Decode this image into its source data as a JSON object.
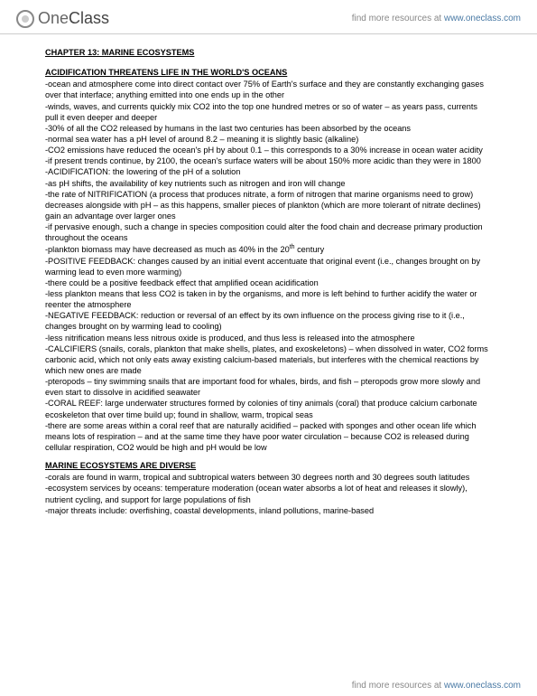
{
  "header": {
    "logo_one": "One",
    "logo_class": "Class",
    "tagline_prefix": "find more resources at ",
    "tagline_link": "www.oneclass.com"
  },
  "chapter_title": "CHAPTER 13: MARINE ECOSYSTEMS",
  "section1": {
    "title": "ACIDIFICATION THREATENS LIFE IN THE WORLD'S OCEANS",
    "bullets": [
      "-ocean and atmosphere come into direct contact over 75% of Earth's surface and they are constantly exchanging gases over that interface; anything emitted into one ends up in the other",
      "-winds, waves, and currents quickly mix CO2 into the top one hundred metres or so of water – as years pass, currents pull it even deeper and deeper",
      "-30% of all the CO2 released by humans in the last two centuries has been absorbed by the oceans",
      "-normal sea water has a pH level of around 8.2 – meaning it is slightly basic (alkaline)",
      "-CO2 emissions have reduced the ocean's pH by about 0.1 – this corresponds to a 30% increase in ocean water acidity",
      "-if present trends continue, by 2100, the ocean's surface waters will be about 150% more acidic than they were in 1800",
      "-ACIDIFICATION: the lowering of the pH of a solution",
      "-as pH shifts, the availability of key nutrients such as nitrogen and iron will change",
      "-the rate of NITRIFICATION (a process that produces nitrate, a form of nitrogen that marine organisms need to grow) decreases alongside with pH – as this happens, smaller pieces of plankton (which are more tolerant of nitrate declines) gain an advantage over larger ones",
      "-if pervasive enough, such a change in species composition could alter the food chain and decrease primary production throughout the oceans",
      "-plankton biomass may have decreased as much as 40% in the 20th century",
      "-POSITIVE FEEDBACK: changes caused by an initial event accentuate that original event (i.e., changes brought on by warming lead to even more warming)",
      "-there could be a positive feedback effect that amplified ocean acidification",
      "-less plankton means that less CO2 is taken in by the organisms, and more is left behind to further acidify the water or reenter the atmosphere",
      "-NEGATIVE FEEDBACK: reduction or reversal of an effect by its own influence on the process giving rise to it (i.e., changes brought on by warming lead to cooling)",
      "-less nitrification means less nitrous oxide is produced, and thus less is released into the atmosphere",
      "-CALCIFIERS (snails, corals, plankton that make shells, plates, and exoskeletons) – when dissolved in water, CO2 forms carbonic acid, which not only eats away existing calcium-based materials, but interferes with the chemical reactions by which new ones are made",
      "-pteropods – tiny swimming snails that are important food for whales, birds, and fish – pteropods grow more slowly and even start to dissolve in acidified seawater",
      "-CORAL REEF: large underwater structures formed by colonies of tiny animals (coral) that produce calcium carbonate ecoskeleton that over time build up; found in shallow, warm, tropical seas",
      "-there are some areas within a coral reef that are naturally acidified – packed with sponges and other ocean life which means lots of respiration – and at the same time they have poor water circulation – because CO2 is released during cellular respiration, CO2 would be high and pH would be low"
    ]
  },
  "section2": {
    "title": "MARINE ECOSYSTEMS ARE DIVERSE",
    "bullets": [
      "-corals are found in warm, tropical and subtropical waters between 30 degrees north and 30 degrees south latitudes",
      "-ecosystem services by oceans: temperature moderation (ocean water absorbs a lot of heat and releases it slowly), nutrient cycling, and support for large populations of fish",
      "-major threats include: overfishing, coastal developments, inland pollutions, marine-based"
    ]
  },
  "footer": {
    "prefix": "find more resources at ",
    "link": "www.oneclass.com"
  }
}
